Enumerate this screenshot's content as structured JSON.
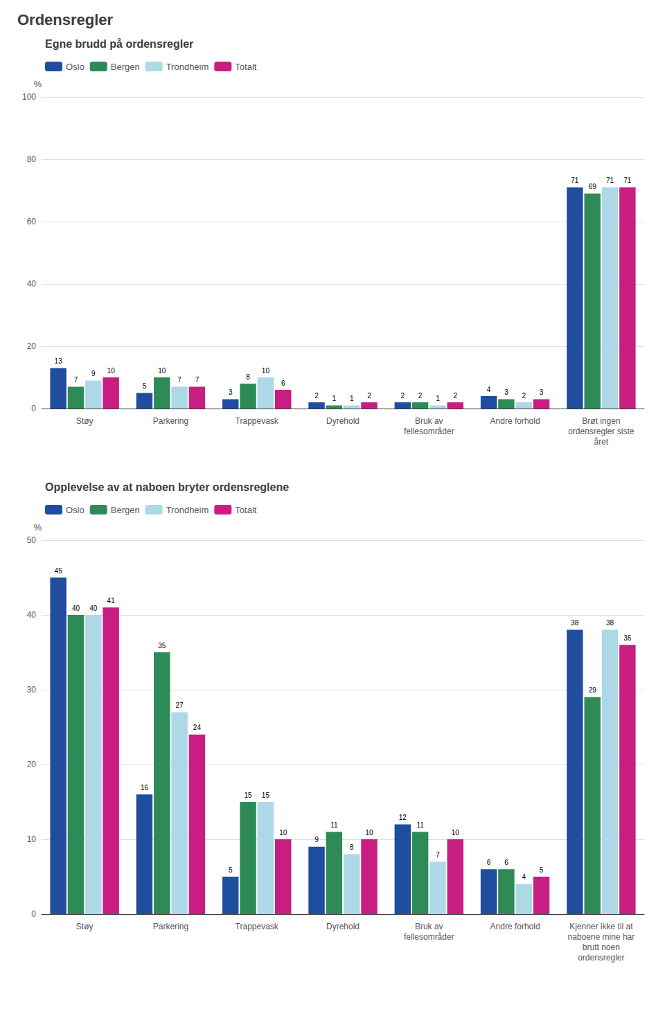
{
  "title": "Ordensregler",
  "chart_data": [
    {
      "type": "bar",
      "title": "Egne brudd på ordensregler",
      "ylabel": "%",
      "categories": [
        "Støy",
        "Parkering",
        "Trappevask",
        "Dyrehold",
        "Bruk av\nfellesområder",
        "Andre forhold",
        "Brøt ingen\nordensregler siste\nåret"
      ],
      "series": [
        {
          "name": "Oslo",
          "color": "#1f4e9e",
          "values": [
            13,
            5,
            3,
            2,
            2,
            4,
            71
          ]
        },
        {
          "name": "Bergen",
          "color": "#2e8b57",
          "values": [
            7,
            10,
            8,
            1,
            2,
            3,
            69
          ]
        },
        {
          "name": "Trondheim",
          "color": "#add8e6",
          "values": [
            9,
            7,
            10,
            1,
            1,
            2,
            71
          ]
        },
        {
          "name": "Totalt",
          "color": "#c81e82",
          "values": [
            10,
            7,
            6,
            2,
            2,
            3,
            71
          ]
        }
      ],
      "ylim": [
        0,
        100
      ],
      "yticks": [
        0,
        20,
        40,
        60,
        80,
        100
      ],
      "grid": true,
      "legend": "upper left",
      "data_labels": true
    },
    {
      "type": "bar",
      "title": "Opplevelse av at naboen bryter ordensreglene",
      "ylabel": "%",
      "categories": [
        "Støy",
        "Parkering",
        "Trappevask",
        "Dyrehold",
        "Bruk av\nfellesområder",
        "Andre forhold",
        "Kjenner ikke til at\nnaboene mine har\nbrutt noen\nordensregler"
      ],
      "series": [
        {
          "name": "Oslo",
          "color": "#1f4e9e",
          "values": [
            45,
            16,
            5,
            9,
            12,
            6,
            38
          ]
        },
        {
          "name": "Bergen",
          "color": "#2e8b57",
          "values": [
            40,
            35,
            15,
            11,
            11,
            6,
            29
          ]
        },
        {
          "name": "Trondheim",
          "color": "#add8e6",
          "values": [
            40,
            27,
            15,
            8,
            7,
            4,
            38
          ]
        },
        {
          "name": "Totalt",
          "color": "#c81e82",
          "values": [
            41,
            24,
            10,
            10,
            10,
            5,
            36
          ]
        }
      ],
      "ylim": [
        0,
        50
      ],
      "yticks": [
        0,
        10,
        20,
        30,
        40,
        50
      ],
      "grid": true,
      "legend": "upper left",
      "data_labels": true
    }
  ]
}
